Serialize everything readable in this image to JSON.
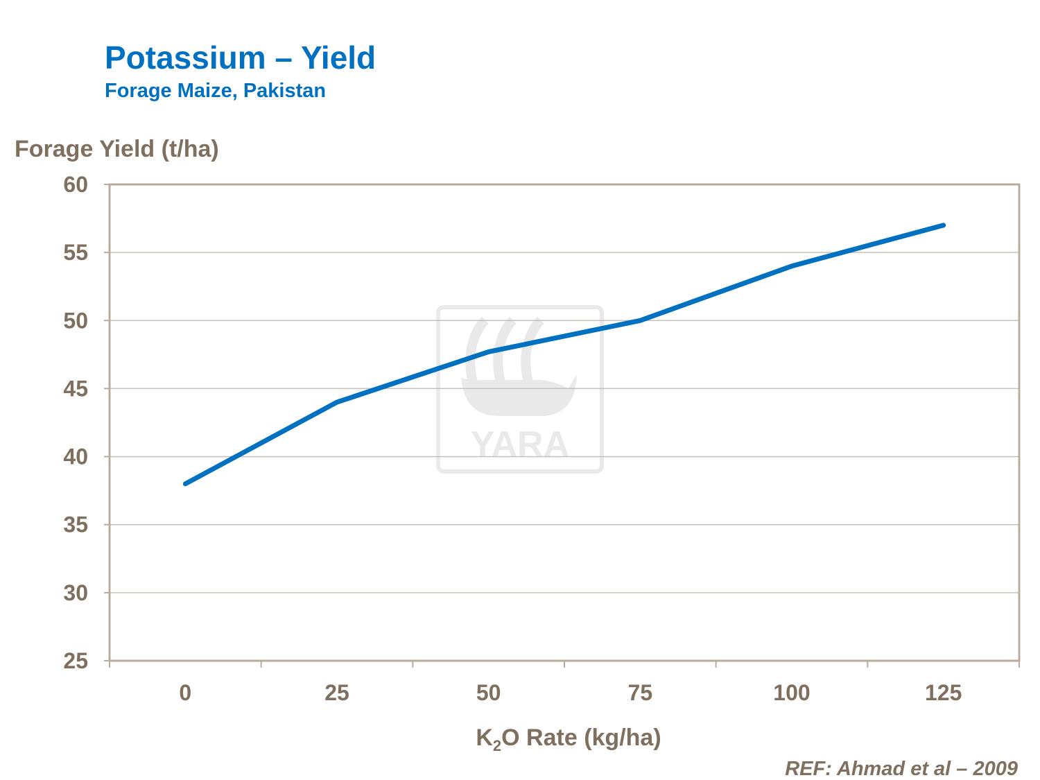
{
  "chart_data": {
    "type": "line",
    "title": "Potassium – Yield",
    "subtitle": "Forage Maize, Pakistan",
    "ylabel": "Forage Yield (t/ha)",
    "xlabel_parts": {
      "pre": "K",
      "sub": "2",
      "post": "O Rate (kg/ha)"
    },
    "categories": [
      "0",
      "25",
      "50",
      "75",
      "100",
      "125"
    ],
    "values": [
      38,
      44,
      47.7,
      50,
      54,
      57
    ],
    "ylim": [
      25,
      60
    ],
    "yticks": [
      25,
      30,
      35,
      40,
      45,
      50,
      55,
      60
    ],
    "grid": true,
    "line_color": "#0070c0",
    "reference": "REF:  Ahmad et al – 2009",
    "watermark": "YARA"
  }
}
